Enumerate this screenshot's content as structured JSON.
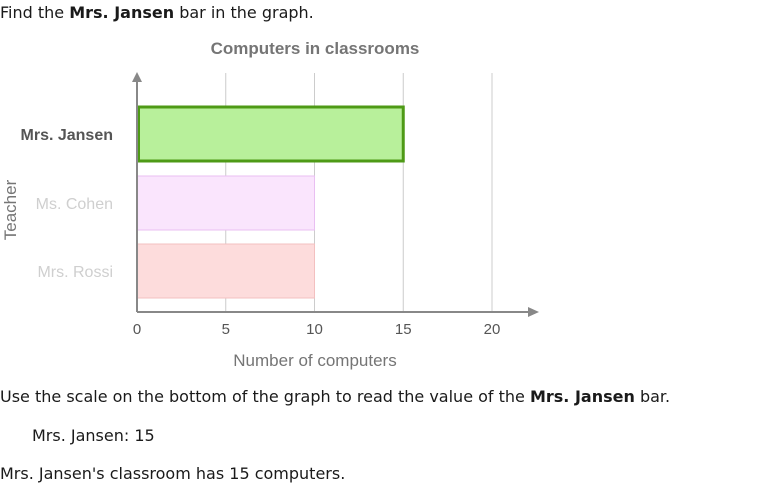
{
  "intro": {
    "pre": "Find the ",
    "bold": "Mrs. Jansen",
    "post": " bar in the graph."
  },
  "instruction": {
    "pre": "Use the scale on the bottom of the graph to read the value of the ",
    "bold": "Mrs. Jansen",
    "post": " bar."
  },
  "answer_line": "Mrs. Jansen: 15",
  "conclusion": "Mrs. Jansen's classroom has 15 computers.",
  "colors": {
    "highlight_fill": "#b8f09b",
    "highlight_stroke": "#4e9a16",
    "cohen_fill": "#fae5fd",
    "cohen_stroke": "#e9bff2",
    "rossi_fill": "#fddcdc",
    "rossi_stroke": "#f3c0c0",
    "grid": "#cccccc",
    "axis": "#888888"
  },
  "chart_data": {
    "type": "bar",
    "orientation": "horizontal",
    "title": "Computers in classrooms",
    "xlabel": "Number of computers",
    "ylabel": "Teacher",
    "categories": [
      "Mrs. Jansen",
      "Ms. Cohen",
      "Mrs. Rossi"
    ],
    "values": [
      15,
      10,
      10
    ],
    "highlighted": "Mrs. Jansen",
    "xlim": [
      0,
      20
    ],
    "xticks": [
      0,
      5,
      10,
      15,
      20
    ],
    "grid": true
  }
}
